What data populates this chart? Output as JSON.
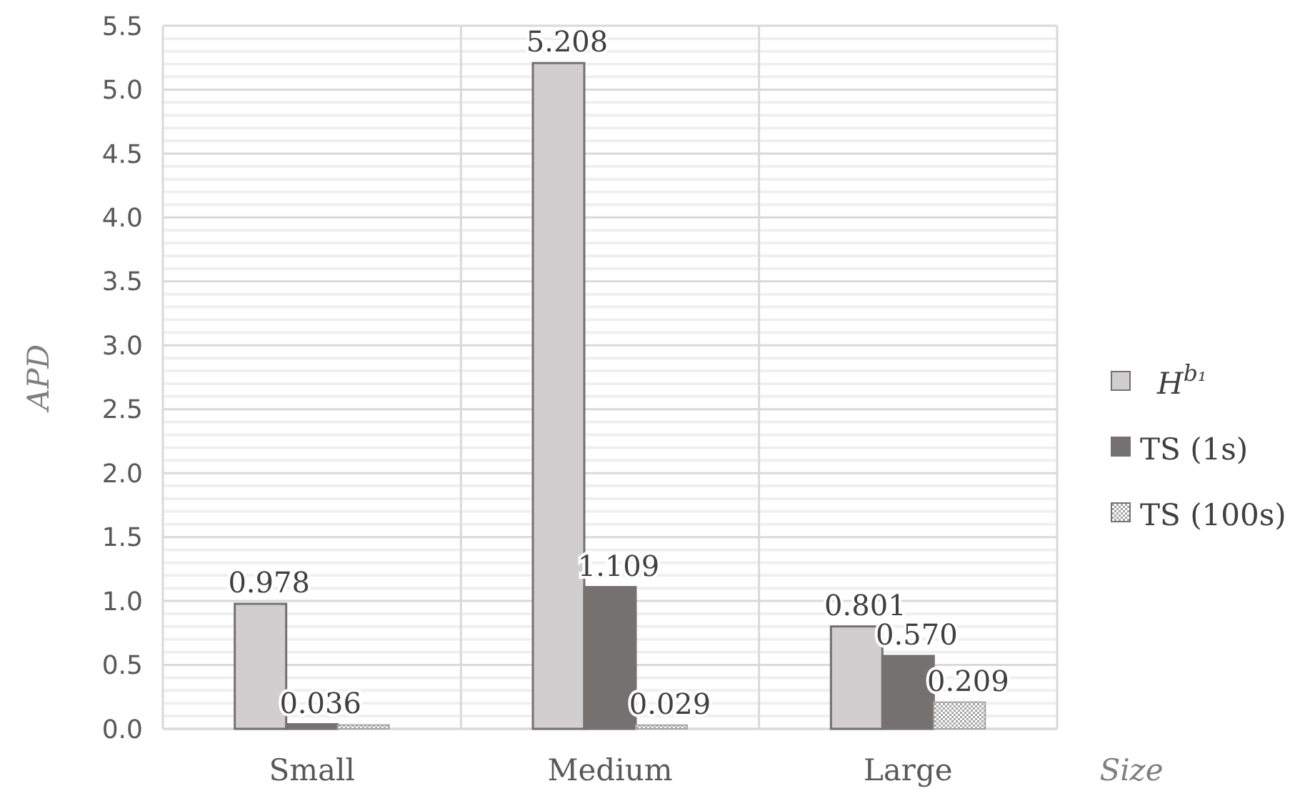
{
  "chart_data": {
    "type": "bar",
    "xlabel": "Size",
    "ylabel": "APD",
    "categories": [
      "Small",
      "Medium",
      "Large"
    ],
    "series": [
      {
        "name": "H$^{b₁}$",
        "color": "#d0cece",
        "values": [
          0.978,
          5.208,
          0.801
        ],
        "value_labels": [
          "0.978",
          "5.208",
          "0.801"
        ]
      },
      {
        "name": "TS (1s)",
        "color": "#767171",
        "values": [
          0.036,
          1.109,
          0.57
        ],
        "value_labels": [
          "0.036",
          "1.109",
          "0.570"
        ]
      },
      {
        "name": "TS (100s)",
        "color": "#a6a6a6",
        "values": [
          0.03,
          0.029,
          0.209
        ],
        "value_labels": [
          null,
          "0.029",
          "0.209"
        ]
      }
    ],
    "ylim": [
      0,
      5.5
    ],
    "yticks": [
      "0.0",
      {
        "value": 0.1,
        "label": null
      },
      {
        "value": 0.2,
        "label": null
      },
      {
        "value": 0.3,
        "label": null
      },
      {
        "value": 0.4,
        "label": null
      },
      {
        "value": 0.5,
        "label": "0.5"
      },
      {
        "value": 0.6,
        "label": null
      },
      {
        "value": 0.7,
        "label": null
      },
      {
        "value": 0.8,
        "label": null
      },
      {
        "value": 0.9,
        "label": null
      },
      {
        "value": 1,
        "label": "1.0"
      },
      {
        "value": 1.1,
        "label": null
      },
      {
        "value": 1.2,
        "label": null
      },
      {
        "value": 1.3,
        "label": null
      },
      {
        "value": 1.4,
        "label": null
      },
      {
        "value": 1.5,
        "label": "1.5"
      },
      {
        "value": 1.6,
        "label": null
      },
      {
        "value": 1.7,
        "label": null
      },
      {
        "value": 1.8,
        "label": null
      },
      {
        "value": 1.9,
        "label": null
      },
      {
        "value": 2,
        "label": "2.0"
      },
      {
        "value": 2.1,
        "label": null
      },
      {
        "value": 2.2,
        "label": null
      },
      {
        "value": 2.3,
        "label": null
      },
      {
        "value": 2.4,
        "label": null
      },
      {
        "value": 2.5,
        "label": "2.5"
      },
      {
        "value": 2.6,
        "label": null
      },
      {
        "value": 2.7,
        "label": null
      },
      {
        "value": 2.8,
        "label": null
      },
      {
        "value": 2.9,
        "label": null
      },
      {
        "value": 3,
        "label": "3.0"
      },
      {
        "value": 3.1,
        "label": null
      },
      {
        "value": 3.2,
        "label": null
      },
      {
        "value": 3.3,
        "label": null
      },
      {
        "value": 3.4,
        "label": null
      },
      {
        "value": 3.5,
        "label": "3.5"
      },
      {
        "value": 3.6,
        "label": null
      },
      {
        "value": 3.7,
        "label": null
      },
      {
        "value": 3.8,
        "label": null
      },
      {
        "value": 3.9,
        "label": null
      },
      {
        "value": 4,
        "label": "4.0"
      },
      {
        "value": 4.1,
        "label": null
      },
      {
        "value": 4.2,
        "label": null
      },
      {
        "value": 4.3,
        "label": null
      },
      {
        "value": 4.4,
        "label": null
      },
      {
        "value": 4.5,
        "label": "4.5"
      },
      {
        "value": 4.6,
        "label": null
      },
      {
        "value": 4.7,
        "label": null
      },
      {
        "value": 4.8,
        "label": null
      },
      {
        "value": 4.9,
        "label": null
      },
      {
        "value": 5,
        "label": "5.0"
      },
      {
        "value": 5.1,
        "label": null
      },
      {
        "value": 5.2,
        "label": null
      },
      {
        "value": 5.3,
        "label": null
      },
      {
        "value": 5.4,
        "label": null
      },
      {
        "value": 5.5,
        "label": "5.5"
      }
    ],
    "grid": true,
    "legend": "right"
  }
}
